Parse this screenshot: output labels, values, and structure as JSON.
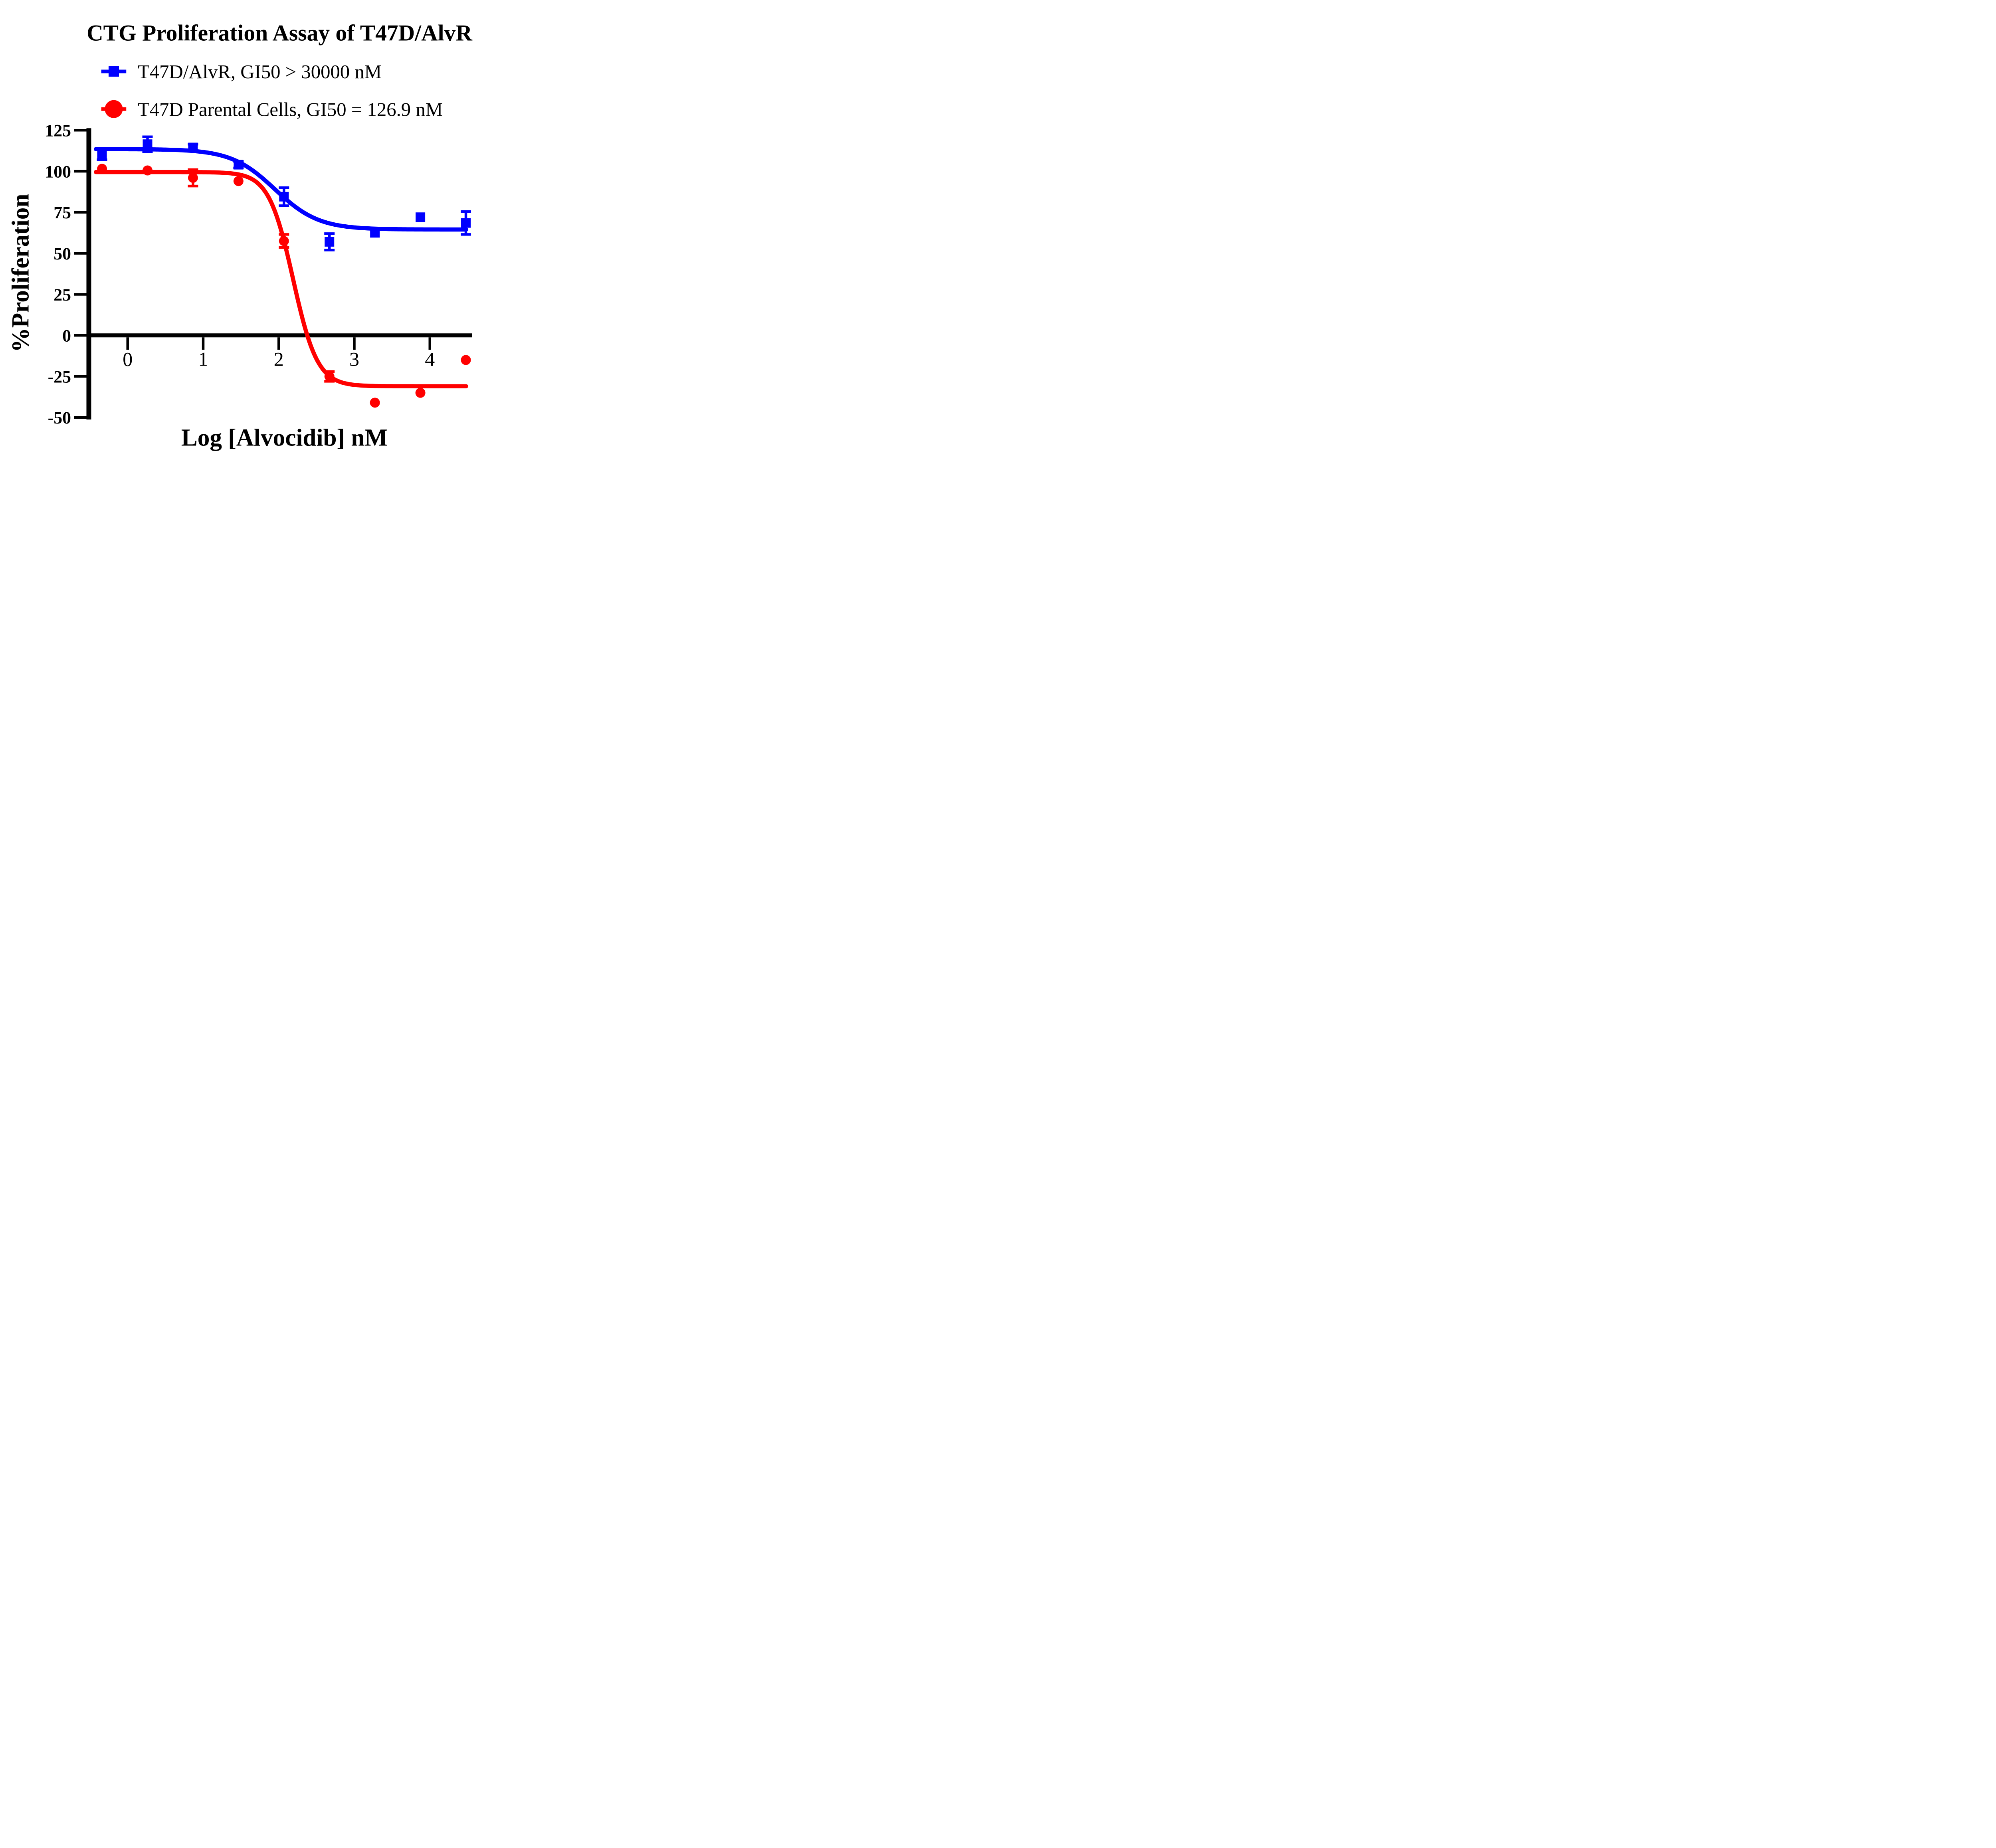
{
  "title": "CTG Proliferation Assay of T47D/AlvR",
  "colors": {
    "series1": "#0000FF",
    "series2": "#FF0000",
    "axis": "#000000",
    "background": "#FFFFFF"
  },
  "legend": {
    "position": "top-left",
    "entries": [
      {
        "label": "T47D/AlvR, GI50 > 30000 nM",
        "marker": "square",
        "color": "#0000FF"
      },
      {
        "label": "T47D Parental Cells, GI50 = 126.9 nM",
        "marker": "circle",
        "color": "#FF0000"
      }
    ]
  },
  "chart_data": {
    "type": "scatter",
    "title": "CTG Proliferation Assay of T47D/AlvR",
    "xlabel": "Log [Alvocidib] nM",
    "ylabel": "%Proliferation",
    "xlim": [
      -0.55,
      4.55
    ],
    "ylim": [
      -50,
      125
    ],
    "x_ticks": [
      0,
      1,
      2,
      3,
      4
    ],
    "y_ticks": [
      125,
      100,
      75,
      50,
      25,
      0,
      -25,
      -50
    ],
    "grid": false,
    "x": [
      -0.339,
      0.263,
      0.865,
      1.467,
      2.069,
      2.671,
      3.273,
      3.875,
      4.477
    ],
    "series": [
      {
        "name": "T47D/AlvR, GI50 > 30000 nM",
        "marker": "square",
        "color": "#0000FF",
        "values": [
          110.5,
          116.5,
          114.5,
          104.0,
          84.5,
          57.0,
          62.5,
          72.0,
          68.5
        ],
        "errors": [
          3.5,
          4.5,
          2.0,
          2.0,
          5.5,
          5.0,
          0,
          0,
          7.0
        ],
        "fit": {
          "top": 113.5,
          "bottom": 64.5,
          "logec50": 1.95,
          "hill": 1.5
        },
        "gi50": "> 30000 nM"
      },
      {
        "name": "T47D Parental Cells, GI50 = 126.9 nM",
        "marker": "circle",
        "color": "#FF0000",
        "values": [
          101.5,
          100.5,
          96.0,
          94.0,
          57.5,
          -25.0,
          -41.0,
          -35.0,
          -15.0
        ],
        "errors": [
          0,
          0,
          5.0,
          0,
          4.0,
          3.0,
          0,
          0,
          0
        ],
        "fit": {
          "top": 99.5,
          "bottom": -31.0,
          "logec50": 2.19,
          "hill": 2.7
        },
        "gi50": "126.9 nM"
      }
    ]
  }
}
